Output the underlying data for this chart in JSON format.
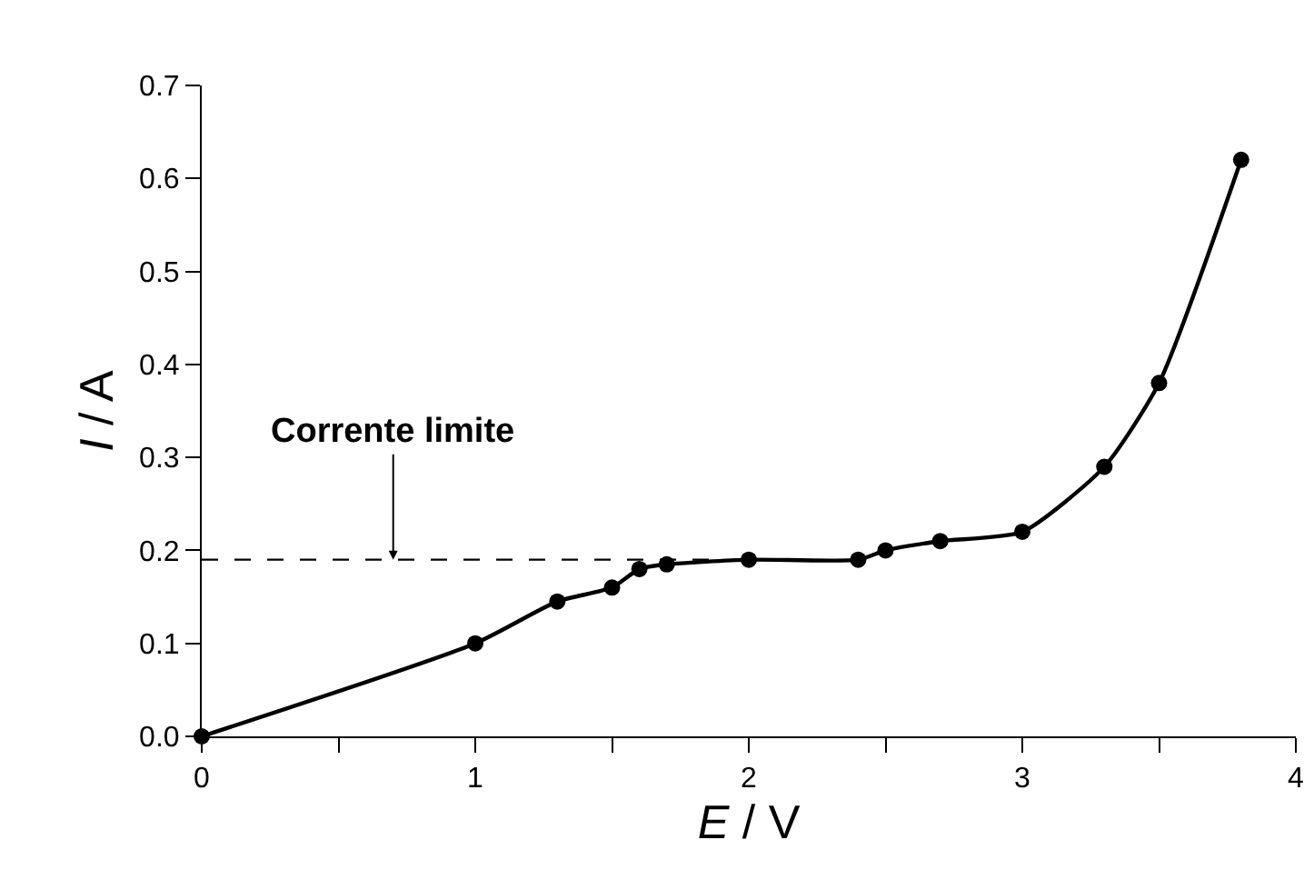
{
  "chart_data": {
    "type": "line",
    "xlabel": "E / V",
    "ylabel": "I / A",
    "series": [
      {
        "color": "#000000",
        "x": [
          0,
          1,
          1.3,
          1.5,
          1.6,
          1.7,
          2,
          2.4,
          2.5,
          2.7,
          3,
          3.3,
          3.5,
          3.8
        ],
        "values": [
          0,
          0.1,
          0.145,
          0.16,
          0.18,
          0.185,
          0.19,
          0.19,
          0.2,
          0.21,
          0.22,
          0.29,
          0.38,
          0.62
        ],
        "marker": "circle",
        "line_style": "solid"
      },
      {
        "color": "#000000",
        "x": [
          0,
          1.9
        ],
        "values": [
          0.19,
          0.19
        ],
        "marker": "none",
        "line_style": "dashed"
      }
    ],
    "annotations": [
      {
        "text": "Corrente limite",
        "x": 0.7,
        "y": 0.19
      }
    ],
    "xlim": [
      0,
      4
    ],
    "ylim": [
      0,
      0.7
    ],
    "xticks": [
      0,
      {
        "value": 0.5,
        "label": null
      },
      1,
      {
        "value": 1.5,
        "label": null
      },
      2,
      {
        "value": 2.5,
        "label": null
      },
      3,
      {
        "value": 3.5,
        "label": null
      },
      4
    ],
    "yticks": [
      {
        "value": 0,
        "label": "0.0"
      },
      0.1,
      0.2,
      0.3,
      0.4,
      0.5,
      0.6,
      0.7
    ]
  }
}
